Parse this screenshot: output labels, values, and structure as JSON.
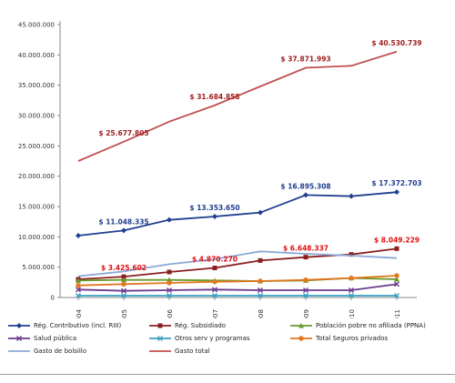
{
  "chart_data": {
    "type": "line",
    "x": [
      "2004",
      "2005",
      "2006",
      "2007",
      "2008",
      "2009",
      "2010",
      "2011"
    ],
    "ylim": [
      0,
      45000000
    ],
    "yticks": [
      "0",
      "5.000.000",
      "10.000.000",
      "15.000.000",
      "20.000.000",
      "25.000.000",
      "30.000.000",
      "35.000.000",
      "40.000.000",
      "45.000.000"
    ],
    "grid": false,
    "legend_position": "bottom",
    "series": [
      {
        "name": "Rég. Contributivo (incl. RIII)",
        "color": "#1f3f8f",
        "marker": "diamond",
        "values": [
          10200000,
          11048335,
          12800000,
          13353650,
          14000000,
          16895308,
          16700000,
          17372703
        ]
      },
      {
        "name": "Rég. Subsidiado",
        "color": "#8b1f1f",
        "marker": "square",
        "values": [
          3000000,
          3425602,
          4200000,
          4870270,
          6100000,
          6648337,
          7100000,
          8049229
        ]
      },
      {
        "name": "Población pobre no afiliada (PPNA)",
        "color": "#6a9a2a",
        "marker": "triangle",
        "values": [
          2800000,
          2900000,
          2900000,
          2800000,
          2700000,
          2800000,
          3200000,
          3000000
        ]
      },
      {
        "name": "Salud pública",
        "color": "#6a3a8f",
        "marker": "x",
        "values": [
          1300000,
          1100000,
          1200000,
          1300000,
          1200000,
          1200000,
          1200000,
          2200000
        ]
      },
      {
        "name": "Otros serv y programas",
        "color": "#3aa0c0",
        "marker": "x",
        "values": [
          300000,
          300000,
          300000,
          300000,
          300000,
          300000,
          300000,
          300000
        ]
      },
      {
        "name": "Total Seguros privados",
        "color": "#e07820",
        "marker": "circle",
        "values": [
          2000000,
          2200000,
          2400000,
          2600000,
          2700000,
          2900000,
          3200000,
          3600000
        ]
      },
      {
        "name": "Gasto de bolsillo",
        "color": "#8aa8d8",
        "marker": "none",
        "values": [
          3500000,
          4300000,
          5500000,
          6300000,
          7600000,
          7200000,
          6900000,
          6500000
        ]
      },
      {
        "name": "Gasto total",
        "color": "#c05050",
        "marker": "none",
        "values": [
          22500000,
          25677805,
          29000000,
          31684858,
          34800000,
          37871993,
          38200000,
          40530739
        ]
      }
    ],
    "annotations": [
      {
        "text": "$ 25.677.805",
        "series": "Gasto total",
        "x": "2005",
        "color": "#a02020"
      },
      {
        "text": "$ 31.684.858",
        "series": "Gasto total",
        "x": "2007",
        "color": "#a02020"
      },
      {
        "text": "$ 37.871.993",
        "series": "Gasto total",
        "x": "2009",
        "color": "#a02020"
      },
      {
        "text": "$ 40.530.739",
        "series": "Gasto total",
        "x": "2011",
        "color": "#a02020"
      },
      {
        "text": "$ 11.048.335",
        "series": "Rég. Contributivo (incl. RIII)",
        "x": "2005",
        "color": "#1f3f8f"
      },
      {
        "text": "$ 13.353.650",
        "series": "Rég. Contributivo (incl. RIII)",
        "x": "2007",
        "color": "#1f3f8f"
      },
      {
        "text": "$ 16.895.308",
        "series": "Rég. Contributivo (incl. RIII)",
        "x": "2009",
        "color": "#1f3f8f"
      },
      {
        "text": "$ 17.372.703",
        "series": "Rég. Contributivo (incl. RIII)",
        "x": "2011",
        "color": "#1f3f8f"
      },
      {
        "text": "$ 3.425.602",
        "series": "Rég. Subsidiado",
        "x": "2005",
        "color": "#e01010"
      },
      {
        "text": "$ 4.870.270",
        "series": "Rég. Subsidiado",
        "x": "2007",
        "color": "#e01010"
      },
      {
        "text": "$ 6.648.337",
        "series": "Rég. Subsidiado",
        "x": "2009",
        "color": "#e01010"
      },
      {
        "text": "$ 8.049.229",
        "series": "Rég. Subsidiado",
        "x": "2011",
        "color": "#e01010"
      }
    ]
  }
}
